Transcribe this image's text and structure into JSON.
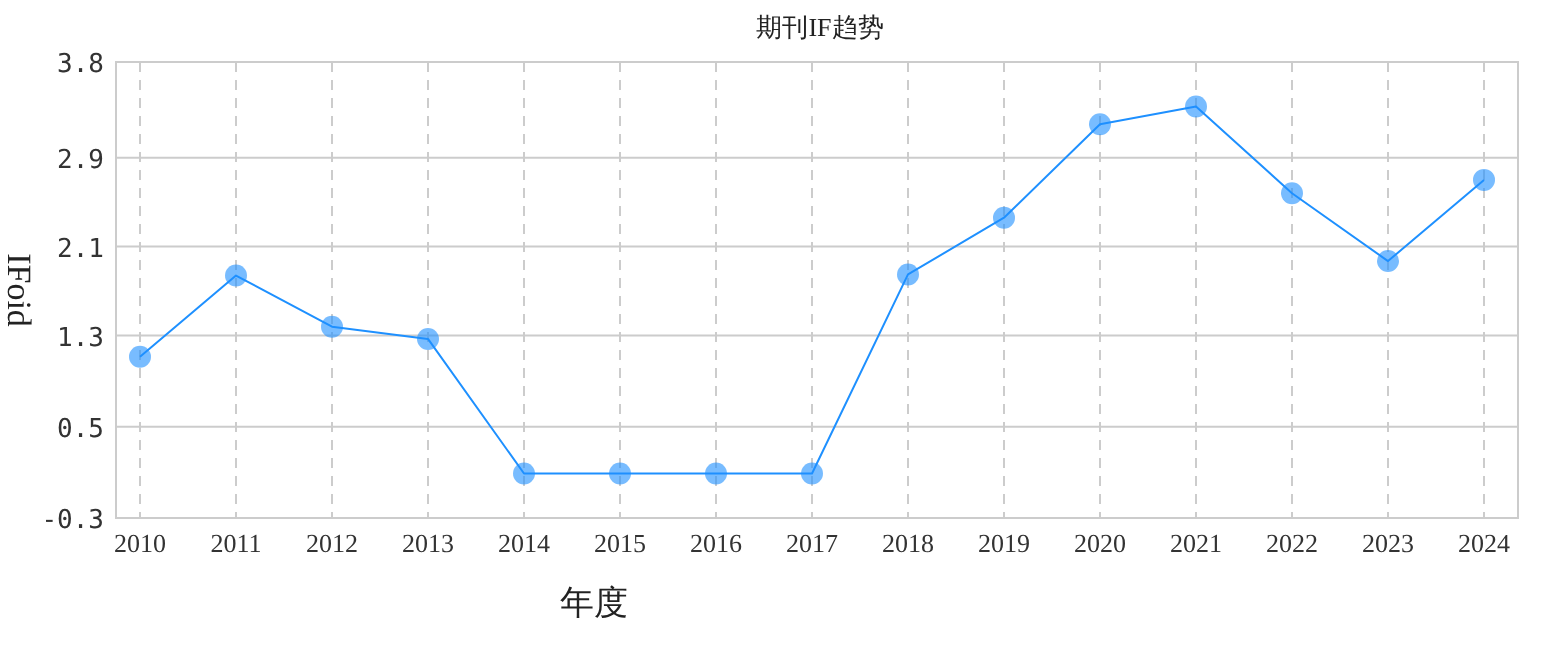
{
  "chart_data": {
    "type": "line",
    "title": "期刊IF趋势",
    "xlabel": "年度",
    "ylabel": "IFoid",
    "categories": [
      "2010",
      "2011",
      "2012",
      "2013",
      "2014",
      "2015",
      "2016",
      "2017",
      "2018",
      "2019",
      "2020",
      "2021",
      "2022",
      "2023",
      "2024"
    ],
    "series": [
      {
        "color": "#1e90ff",
        "values": [
          1.15,
          1.88,
          1.42,
          1.31,
          0.1,
          0.1,
          0.1,
          0.1,
          1.89,
          2.4,
          3.24,
          3.4,
          2.62,
          2.01,
          2.74
        ]
      }
    ],
    "ylim": [
      -0.3,
      3.8
    ],
    "yticks": [
      -0.3,
      {
        "value": 0.52,
        "label": "0.5"
      },
      {
        "value": 1.34,
        "label": "1.3"
      },
      {
        "value": 2.14,
        "label": "2.1"
      },
      {
        "value": 2.94,
        "label": "2.9"
      },
      3.8
    ],
    "grid": true,
    "marker": "circle",
    "line_style": "solid"
  }
}
